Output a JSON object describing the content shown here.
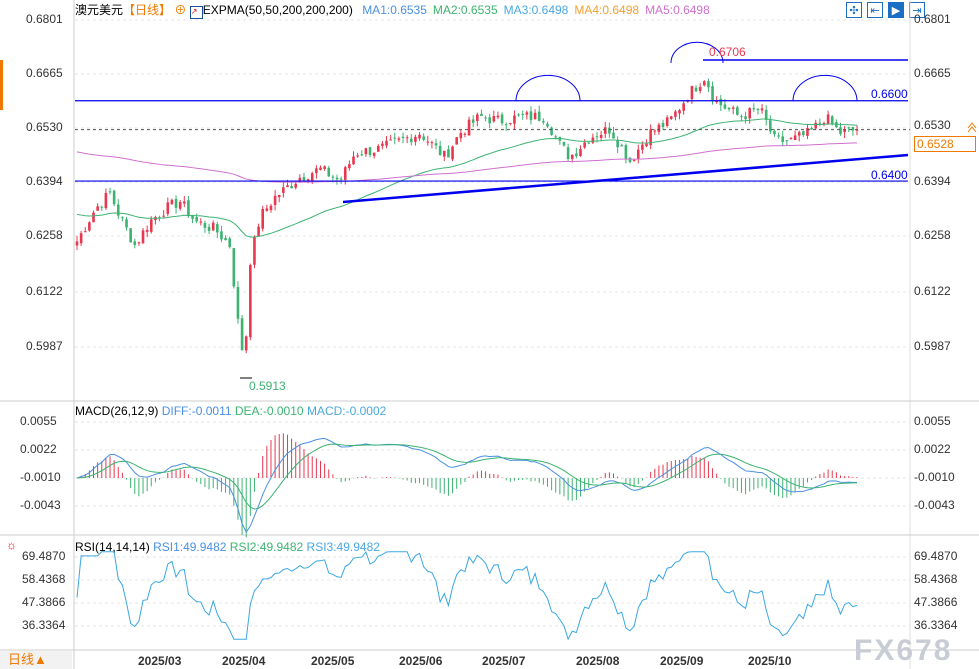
{
  "header": {
    "symbol": "澳元美元",
    "period": "【日线】",
    "indicator": "EXPMA(50,50,200,200,200)",
    "ma": [
      {
        "label": "MA1:0.6535",
        "color": "#4a90e2"
      },
      {
        "label": "MA2:0.6535",
        "color": "#3cb371"
      },
      {
        "label": "MA3:0.6498",
        "color": "#4aa8e0"
      },
      {
        "label": "MA4:0.6498",
        "color": "#f0a030"
      },
      {
        "label": "MA5:0.6498",
        "color": "#d070d0"
      }
    ]
  },
  "toolbar": {
    "icons": [
      "crosshair-icon",
      "fit-range-icon",
      "auto-scale-icon",
      "move-right-icon"
    ]
  },
  "price_axis": [
    "0.6801",
    "0.6665",
    "0.6530",
    "0.6394",
    "0.6258",
    "0.6122",
    "0.5987"
  ],
  "current_price": "0.6528",
  "annotations": {
    "high": "0.6706",
    "low": "0.5913",
    "resistance": "0.6600",
    "support": "0.6400"
  },
  "macd": {
    "title": "MACD(26,12,9)",
    "diff": "DIFF:-0.0011",
    "dea": "DEA:-0.0010",
    "macd": "MACD:-0.0002",
    "axis": [
      "0.0055",
      "0.0022",
      "-0.0010",
      "-0.0043"
    ]
  },
  "rsi": {
    "title": "RSI(14,14,14)",
    "rsi1": "RSI1:49.9482",
    "rsi2": "RSI2:49.9482",
    "rsi3": "RSI3:49.9482",
    "axis": [
      "69.4870",
      "58.4368",
      "47.3866",
      "36.3364"
    ]
  },
  "footer": {
    "period_button": "日线▲",
    "months": [
      "2025/03",
      "2025/04",
      "2025/05",
      "2025/06",
      "2025/07",
      "2025/08",
      "2025/09",
      "2025/10"
    ]
  },
  "watermark": "FX678",
  "colors": {
    "up": "#e8384f",
    "down": "#3cb371",
    "line": "#0000ee"
  },
  "chart_data": {
    "type": "candlestick",
    "ylim": [
      0.5987,
      0.6801
    ],
    "approx_close_path": [
      0.625,
      0.633,
      0.637,
      0.631,
      0.624,
      0.63,
      0.633,
      0.635,
      0.63,
      0.628,
      0.624,
      0.6,
      0.596,
      0.62,
      0.631,
      0.636,
      0.641,
      0.643,
      0.64,
      0.647,
      0.648,
      0.65,
      0.652,
      0.646,
      0.652,
      0.656,
      0.655,
      0.656,
      0.656,
      0.649,
      0.646,
      0.651,
      0.653,
      0.645,
      0.652,
      0.655,
      0.662,
      0.666,
      0.66,
      0.656,
      0.658,
      0.65,
      0.65,
      0.652,
      0.656,
      0.652,
      0.6528
    ],
    "x_ticks": [
      "2025/03",
      "2025/04",
      "2025/05",
      "2025/06",
      "2025/07",
      "2025/08",
      "2025/09",
      "2025/10"
    ]
  }
}
